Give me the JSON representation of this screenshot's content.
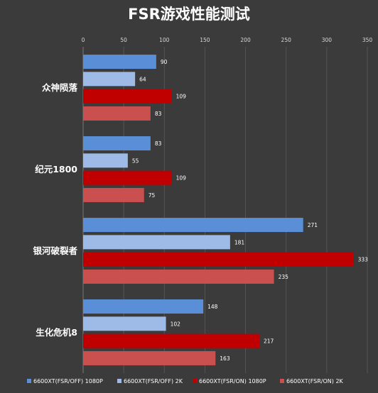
{
  "chart_data": {
    "type": "bar",
    "orientation": "horizontal",
    "title": "FSR游戏性能测试",
    "categories": [
      "众神陨落",
      "纪元1800",
      "银河破裂者",
      "生化危机8"
    ],
    "series": [
      {
        "name": "6600XT(FSR/OFF) 1080P",
        "color": "#5a8ed6",
        "values": [
          90,
          83,
          271,
          148
        ]
      },
      {
        "name": "6600XT(FSR/OFF) 2K",
        "color": "#9dbbe6",
        "values": [
          64,
          55,
          181,
          102
        ]
      },
      {
        "name": "6600XT(FSR/ON) 1080P",
        "color": "#c00000",
        "values": [
          109,
          109,
          333,
          217
        ]
      },
      {
        "name": "6600XT(FSR/ON) 2K",
        "color": "#c9504f",
        "values": [
          83,
          75,
          235,
          163
        ]
      }
    ],
    "xlim": [
      0,
      350
    ],
    "xticks": [
      0,
      50,
      100,
      150,
      200,
      250,
      300,
      350
    ],
    "grid": true,
    "legend_position": "bottom",
    "colors": {
      "background": "#3b3b3b",
      "grid": "#555555",
      "text": "#ffffff"
    }
  }
}
